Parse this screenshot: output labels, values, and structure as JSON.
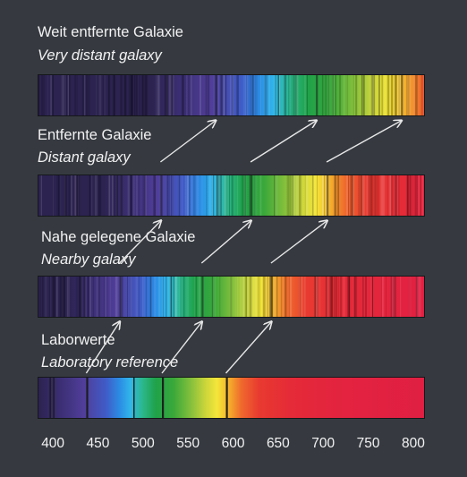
{
  "captions": {
    "very_distant_de": "Weit entfernte Galaxie",
    "very_distant_en": "Very distant galaxy",
    "distant_de": "Entfernte Galaxie",
    "distant_en": "Distant galaxy",
    "nearby_de": "Nahe gelegene Galaxie",
    "nearby_en": "Nearby galaxy",
    "lab_de": "Laborwerte",
    "lab_en": "Laboratory reference"
  },
  "axis": {
    "min": 380,
    "max": 810,
    "ticks": [
      "400",
      "450",
      "500",
      "550",
      "600",
      "650",
      "700",
      "750",
      "800"
    ]
  },
  "colors": {
    "background": "#363a40",
    "text": "#f2f2f2",
    "arrow": "#e8e8e8",
    "absorption_line": "#1b1b1b"
  },
  "spectra": [
    {
      "name": "lab",
      "shift": 1.0
    },
    {
      "name": "nearby",
      "shift": 1.085
    },
    {
      "name": "distant",
      "shift": 1.19
    },
    {
      "name": "very_distant",
      "shift": 1.33
    }
  ],
  "absorption_lines_nm": [
    393,
    397,
    434,
    486,
    518,
    589
  ],
  "strong_lines_nm": [
    434,
    518,
    589
  ]
}
